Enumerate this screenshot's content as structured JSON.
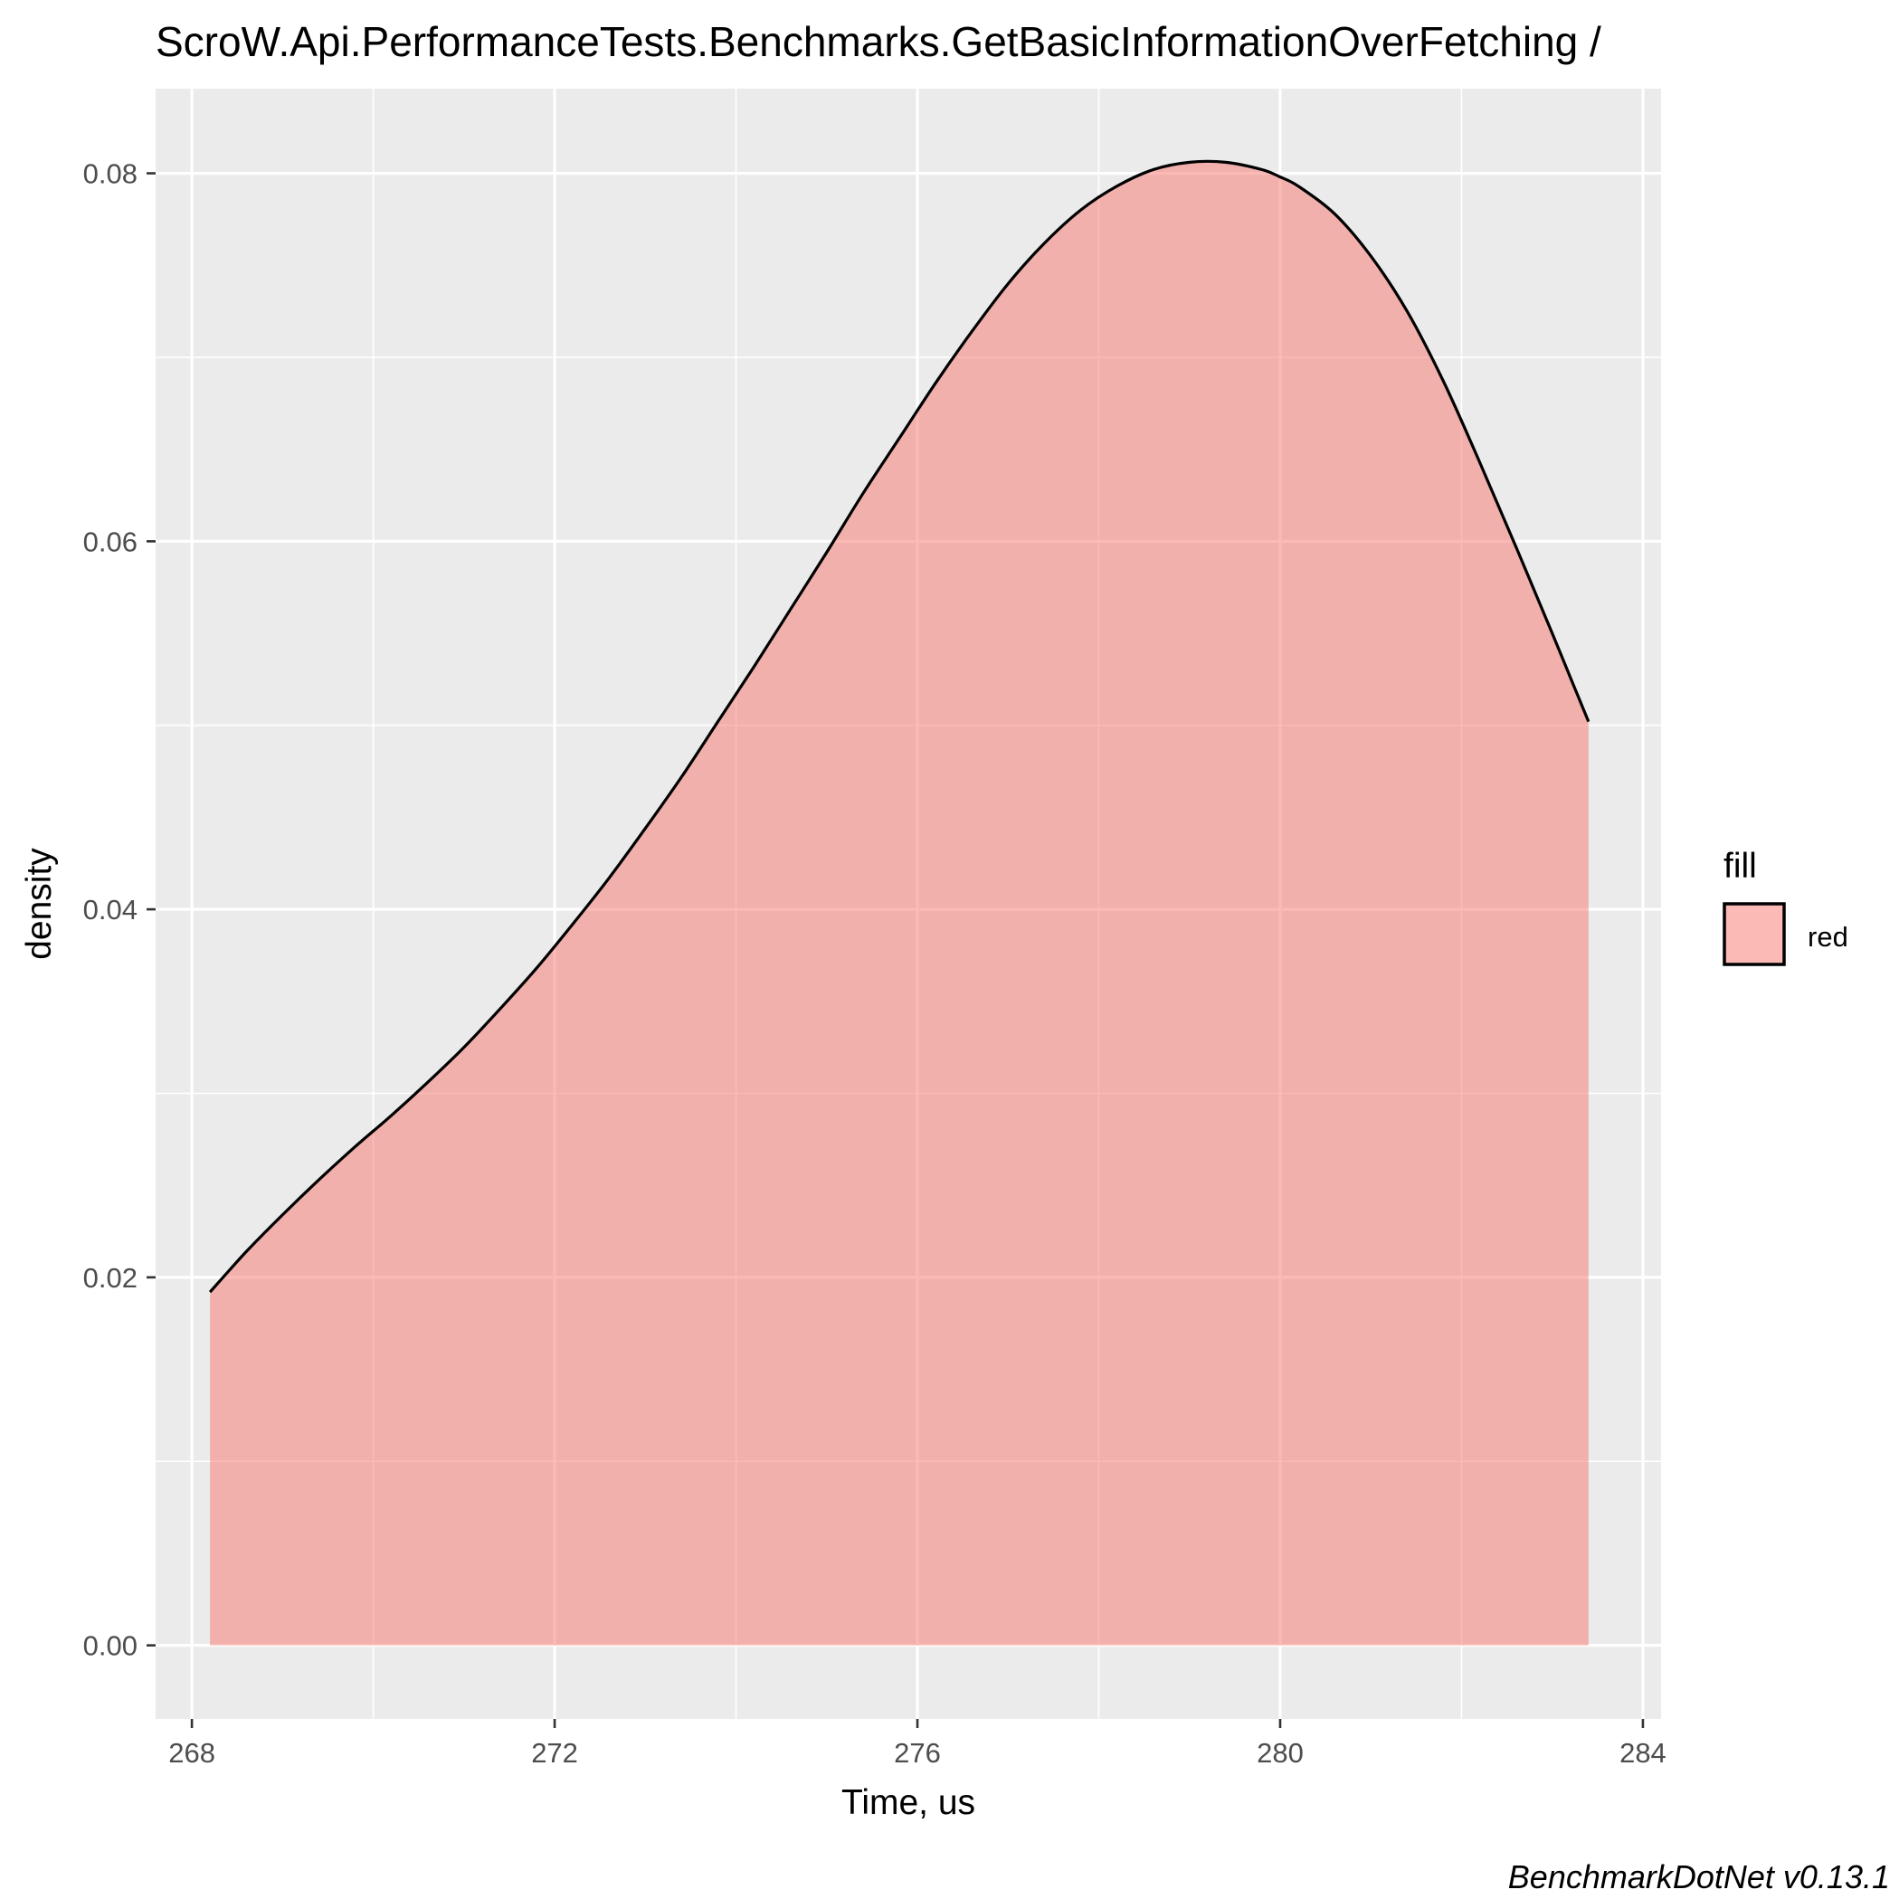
{
  "chart_data": {
    "type": "area",
    "title": "ScroW.Api.PerformanceTests.Benchmarks.GetBasicInformationOverFetching /",
    "xlabel": "Time, us",
    "ylabel": "density",
    "caption": "BenchmarkDotNet v0.13.1",
    "xlim": [
      267.6,
      284.2
    ],
    "ylim": [
      -0.004,
      0.0846
    ],
    "x_ticks": [
      268,
      272,
      276,
      280,
      284
    ],
    "x_tick_labels": [
      "268",
      "272",
      "276",
      "280",
      "284"
    ],
    "y_ticks": [
      0,
      0.02,
      0.04,
      0.06,
      0.08
    ],
    "y_tick_labels": [
      "0.00",
      "0.02",
      "0.04",
      "0.06",
      "0.08"
    ],
    "x_minor_ticks": [
      270,
      274,
      278,
      282
    ],
    "y_minor_ticks": [
      0.01,
      0.03,
      0.05,
      0.07
    ],
    "grid": true,
    "legend": {
      "title": "fill",
      "position": "right",
      "entries": [
        "red"
      ]
    },
    "series": [
      {
        "name": "red",
        "fill_color": "#F8766D",
        "fill_opacity": 0.5,
        "line_color": "#000000",
        "x": [
          268.2,
          268.6,
          269.0,
          269.4,
          269.8,
          270.2,
          270.6,
          271.0,
          271.4,
          271.8,
          272.2,
          272.6,
          273.0,
          273.4,
          273.8,
          274.2,
          274.6,
          275.0,
          275.4,
          275.8,
          276.2,
          276.6,
          277.0,
          277.4,
          277.8,
          278.2,
          278.6,
          279.0,
          279.4,
          279.8,
          280.0,
          280.2,
          280.6,
          281.0,
          281.4,
          281.8,
          282.2,
          282.6,
          283.0,
          283.2,
          283.4
        ],
        "y": [
          0.0192,
          0.0214,
          0.0234,
          0.0253,
          0.0271,
          0.0288,
          0.0306,
          0.0325,
          0.0346,
          0.0368,
          0.0392,
          0.0417,
          0.0444,
          0.0472,
          0.0502,
          0.0532,
          0.0563,
          0.0594,
          0.0626,
          0.0656,
          0.0686,
          0.0714,
          0.074,
          0.0762,
          0.078,
          0.0793,
          0.0802,
          0.0806,
          0.0806,
          0.0802,
          0.0798,
          0.0793,
          0.0778,
          0.0755,
          0.0725,
          0.0687,
          0.0643,
          0.0597,
          0.055,
          0.0526,
          0.0502
        ]
      }
    ]
  }
}
